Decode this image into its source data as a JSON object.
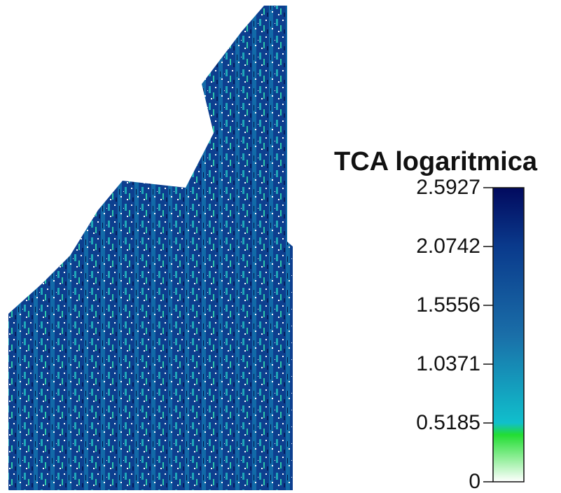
{
  "legend": {
    "title": "TCA logaritmica",
    "range": [
      0,
      2.5927
    ],
    "ticks": [
      0,
      0.5185,
      1.0371,
      1.5556,
      2.0742,
      2.5927
    ]
  }
}
